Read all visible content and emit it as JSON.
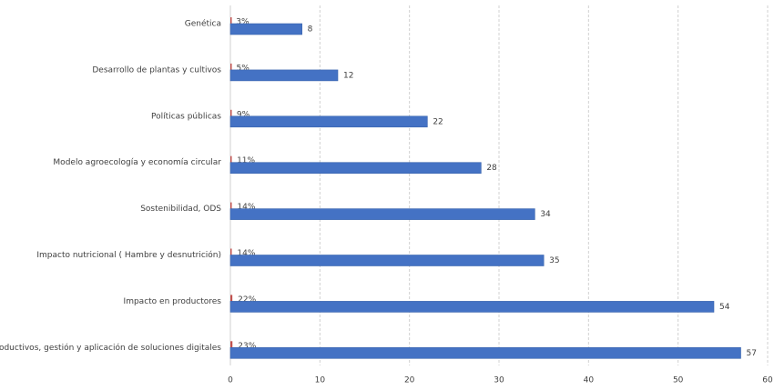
{
  "chart_data": {
    "type": "hbar",
    "categories": [
      "Genética",
      "Desarrollo de plantas y cultivos",
      "Políticas públicas",
      "Modelo agroecología y economía circular",
      "Sostenibilidad, ODS",
      "Impacto nutricional ( Hambre y desnutrición)",
      "Impacto en productores",
      "Procesos productivos, gestión  y aplicación de soluciones digitales"
    ],
    "series": [
      {
        "color": "#c0504d",
        "values": [
          0.03,
          0.05,
          0.09,
          0.11,
          0.14,
          0.14,
          0.22,
          0.23
        ],
        "value_labels": [
          "3%",
          "5%",
          "9%",
          "11%",
          "14%",
          "14%",
          "22%",
          "23%"
        ]
      },
      {
        "color": "#4472c4",
        "values": [
          8,
          12,
          22,
          28,
          34,
          35,
          54,
          57
        ]
      }
    ],
    "xlim": [
      0,
      60
    ],
    "xticks": [
      0,
      10,
      20,
      30,
      40,
      50,
      60
    ],
    "grid": true
  }
}
